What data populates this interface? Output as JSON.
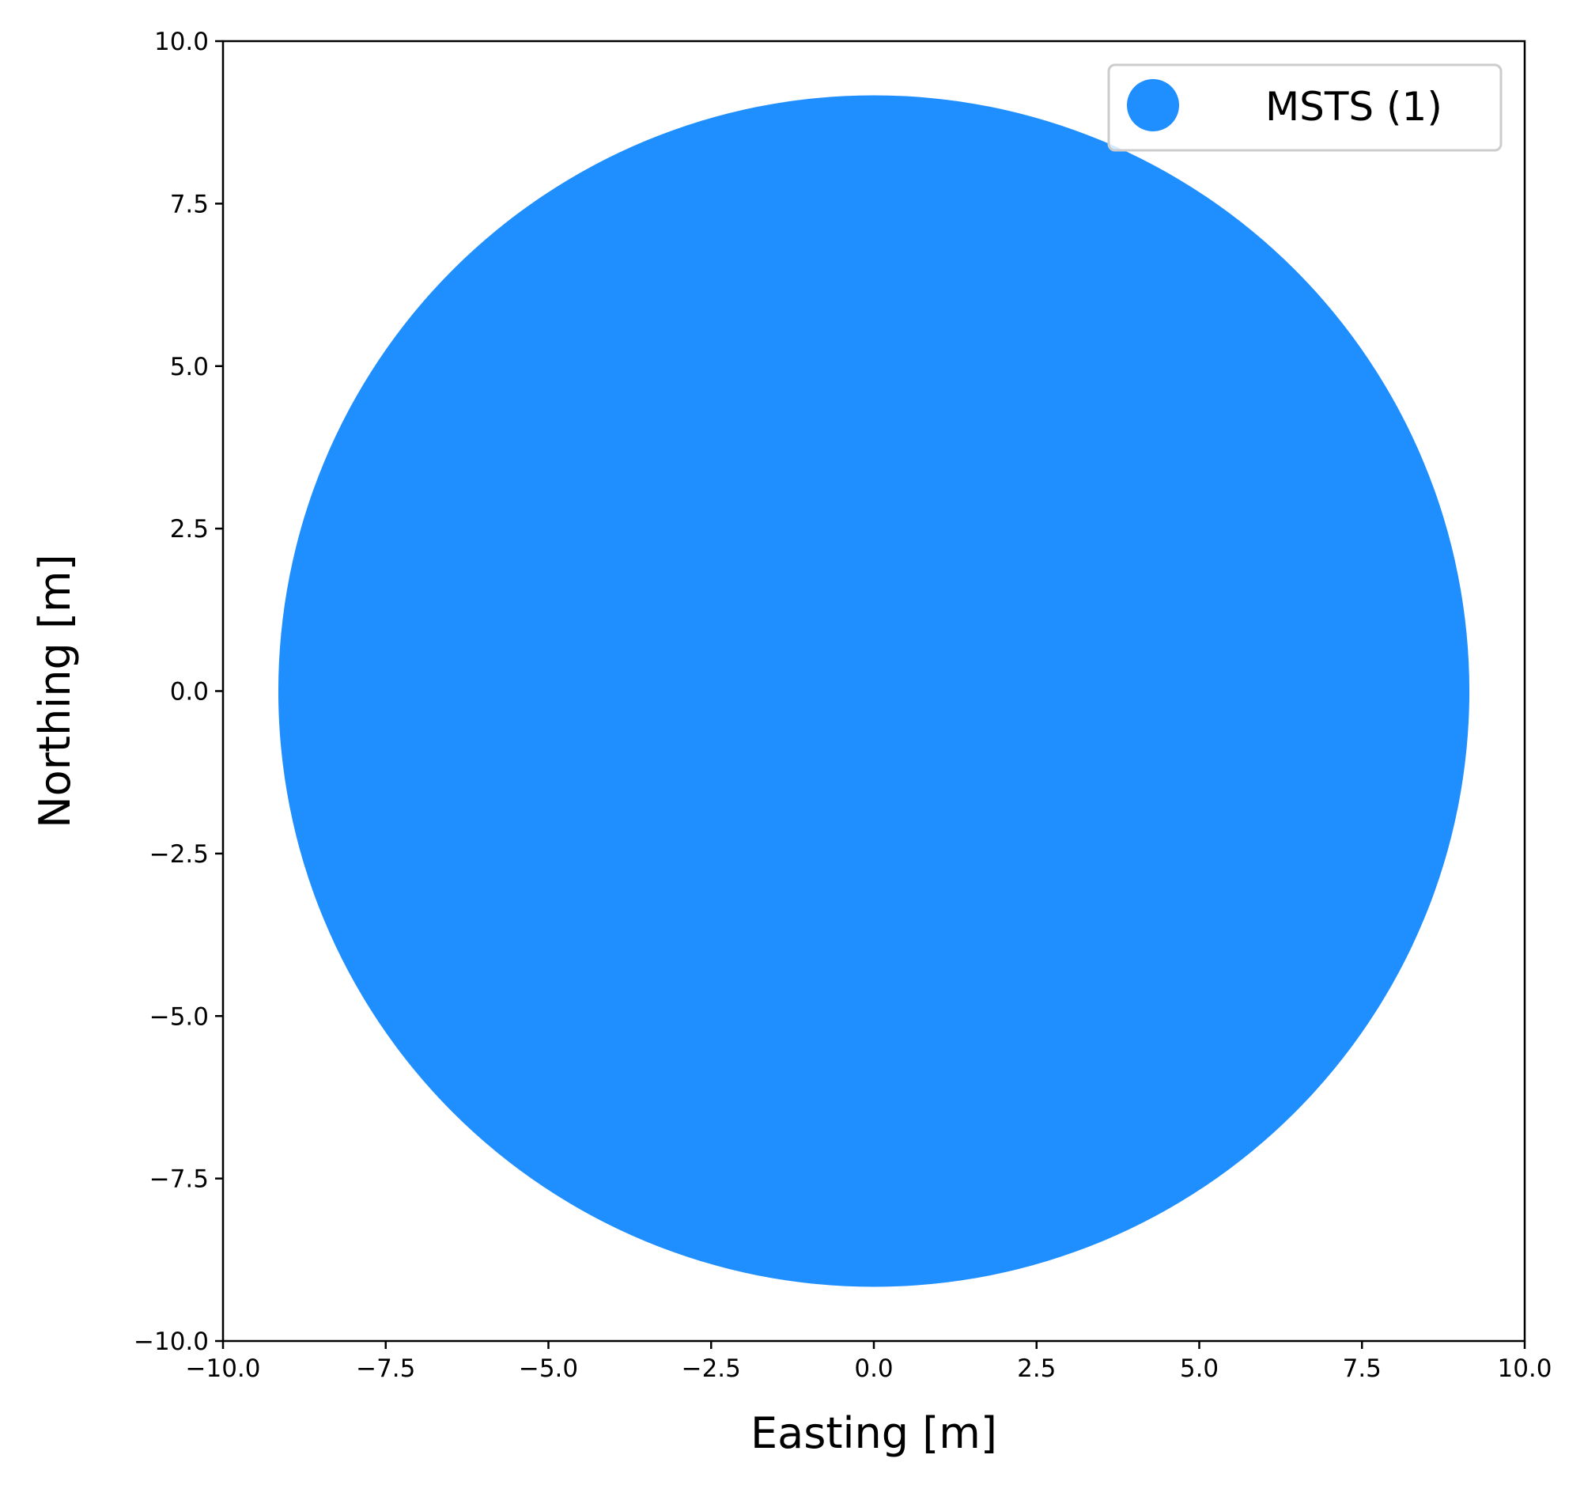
{
  "chart_data": {
    "type": "scatter",
    "title": "",
    "xlabel": "Easting [m]",
    "ylabel": "Northing [m]",
    "xlim": [
      -10.0,
      10.0
    ],
    "ylim": [
      -10.0,
      10.0
    ],
    "xticks": [
      -10.0,
      -7.5,
      -5.0,
      -2.5,
      0.0,
      2.5,
      5.0,
      7.5,
      10.0
    ],
    "xtick_labels": [
      "−10.0",
      "−7.5",
      "−5.0",
      "−2.5",
      "0.0",
      "2.5",
      "5.0",
      "7.5",
      "10.0"
    ],
    "yticks": [
      -10.0,
      -7.5,
      -5.0,
      -2.5,
      0.0,
      2.5,
      5.0,
      7.5,
      10.0
    ],
    "ytick_labels": [
      "−10.0",
      "−7.5",
      "−5.0",
      "−2.5",
      "0.0",
      "2.5",
      "5.0",
      "7.5",
      "10.0"
    ],
    "grid": false,
    "legend_position": "top-right",
    "series": [
      {
        "name": "MSTS (1)",
        "color": "#1f8fff",
        "marker": "circle",
        "points": [
          {
            "x": 0.0,
            "y": 0.0,
            "radius": 9.15
          }
        ]
      }
    ]
  }
}
